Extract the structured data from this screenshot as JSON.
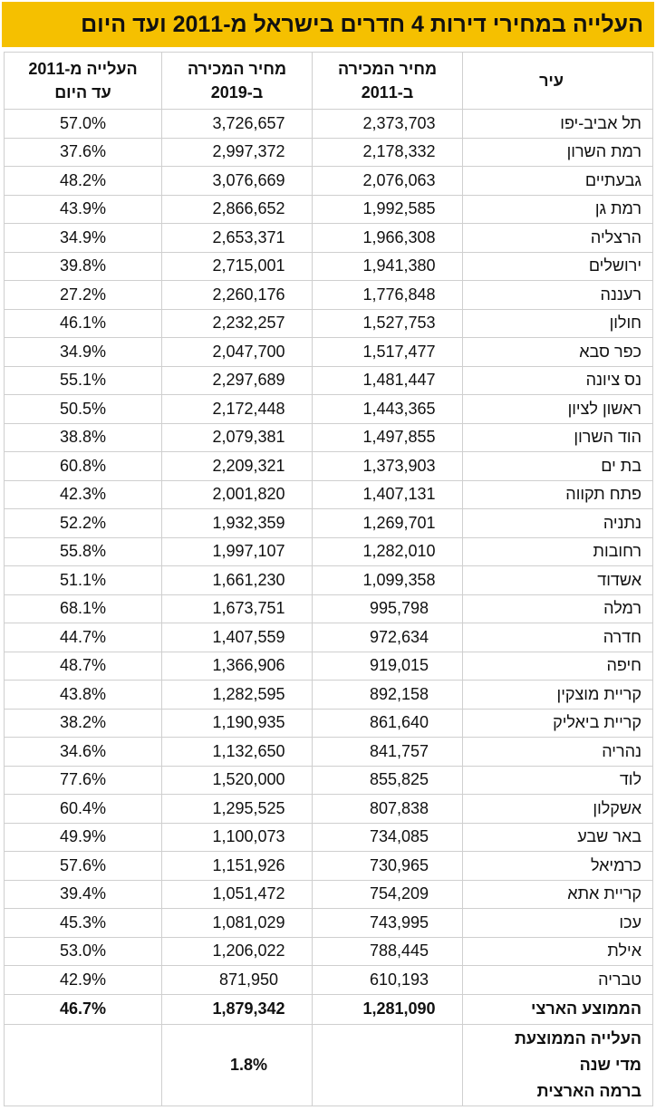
{
  "header": {
    "title": "העלייה במחירי דירות 4 חדרים בישראל מ-2011 ועד היום"
  },
  "table": {
    "columns": [
      [
        "עיר"
      ],
      [
        "מחיר המכירה",
        "ב-2011"
      ],
      [
        "מחיר המכירה",
        "ב-2019"
      ],
      [
        "העלייה מ-2011",
        "עד היום"
      ]
    ],
    "rows": [
      [
        "תל אביב-יפו",
        "2,373,703",
        "3,726,657",
        "57.0%"
      ],
      [
        "רמת השרון",
        "2,178,332",
        "2,997,372",
        "37.6%"
      ],
      [
        "גבעתיים",
        "2,076,063",
        "3,076,669",
        "48.2%"
      ],
      [
        "רמת גן",
        "1,992,585",
        "2,866,652",
        "43.9%"
      ],
      [
        "הרצליה",
        "1,966,308",
        "2,653,371",
        "34.9%"
      ],
      [
        "ירושלים",
        "1,941,380",
        "2,715,001",
        "39.8%"
      ],
      [
        "רעננה",
        "1,776,848",
        "2,260,176",
        "27.2%"
      ],
      [
        "חולון",
        "1,527,753",
        "2,232,257",
        "46.1%"
      ],
      [
        "כפר סבא",
        "1,517,477",
        "2,047,700",
        "34.9%"
      ],
      [
        "נס ציונה",
        "1,481,447",
        "2,297,689",
        "55.1%"
      ],
      [
        "ראשון לציון",
        "1,443,365",
        "2,172,448",
        "50.5%"
      ],
      [
        "הוד השרון",
        "1,497,855",
        "2,079,381",
        "38.8%"
      ],
      [
        "בת ים",
        "1,373,903",
        "2,209,321",
        "60.8%"
      ],
      [
        "פתח תקווה",
        "1,407,131",
        "2,001,820",
        "42.3%"
      ],
      [
        "נתניה",
        "1,269,701",
        "1,932,359",
        "52.2%"
      ],
      [
        "רחובות",
        "1,282,010",
        "1,997,107",
        "55.8%"
      ],
      [
        "אשדוד",
        "1,099,358",
        "1,661,230",
        "51.1%"
      ],
      [
        "רמלה",
        "995,798",
        "1,673,751",
        "68.1%"
      ],
      [
        "חדרה",
        "972,634",
        "1,407,559",
        "44.7%"
      ],
      [
        "חיפה",
        "919,015",
        "1,366,906",
        "48.7%"
      ],
      [
        "קריית מוצקין",
        "892,158",
        "1,282,595",
        "43.8%"
      ],
      [
        "קריית ביאליק",
        "861,640",
        "1,190,935",
        "38.2%"
      ],
      [
        "נהריה",
        "841,757",
        "1,132,650",
        "34.6%"
      ],
      [
        "לוד",
        "855,825",
        "1,520,000",
        "77.6%"
      ],
      [
        "אשקלון",
        "807,838",
        "1,295,525",
        "60.4%"
      ],
      [
        "באר שבע",
        "734,085",
        "1,100,073",
        "49.9%"
      ],
      [
        "כרמיאל",
        "730,965",
        "1,151,926",
        "57.6%"
      ],
      [
        "קריית אתא",
        "754,209",
        "1,051,472",
        "39.4%"
      ],
      [
        "עכו",
        "743,995",
        "1,081,029",
        "45.3%"
      ],
      [
        "אילת",
        "788,445",
        "1,206,022",
        "53.0%"
      ],
      [
        "טבריה",
        "610,193",
        "871,950",
        "42.9%"
      ]
    ],
    "average": [
      "הממוצע הארצי",
      "1,281,090",
      "1,879,342",
      "46.7%"
    ],
    "annual": {
      "label": [
        "העלייה הממוצעת",
        "מדי שנה",
        "ברמה הארצית"
      ],
      "value": "1.8%"
    }
  }
}
